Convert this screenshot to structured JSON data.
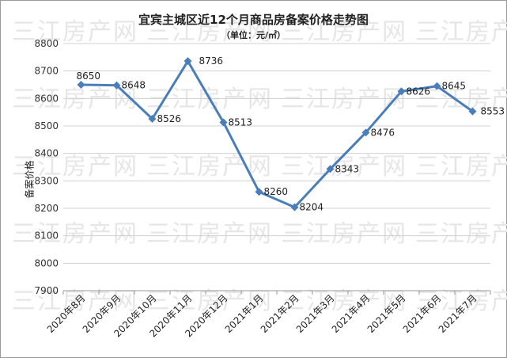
{
  "chart_data": {
    "type": "line",
    "title": "宜宾主城区近12个月商品房备案价格走势图",
    "subtitle": "（单位：元/㎡）",
    "ylabel": "备案价格",
    "ylim": [
      7900,
      8800
    ],
    "yticks": [
      7900,
      8000,
      8100,
      8200,
      8300,
      8400,
      8500,
      8600,
      8700,
      8800
    ],
    "categories": [
      "2020年8月",
      "2020年9月",
      "2020年10月",
      "2020年11月",
      "2020年12月",
      "2021年1月",
      "2021年2月",
      "2021年3月",
      "2021年4月",
      "2021年5月",
      "2021年6月",
      "2021年7月"
    ],
    "series": [
      {
        "values": [
          8650,
          8648,
          8526,
          8736,
          8513,
          8260,
          8204,
          8343,
          8476,
          8626,
          8645,
          8553
        ]
      }
    ],
    "grid": true,
    "line_color": "#4a7ebb",
    "watermark": "三江房产网"
  }
}
